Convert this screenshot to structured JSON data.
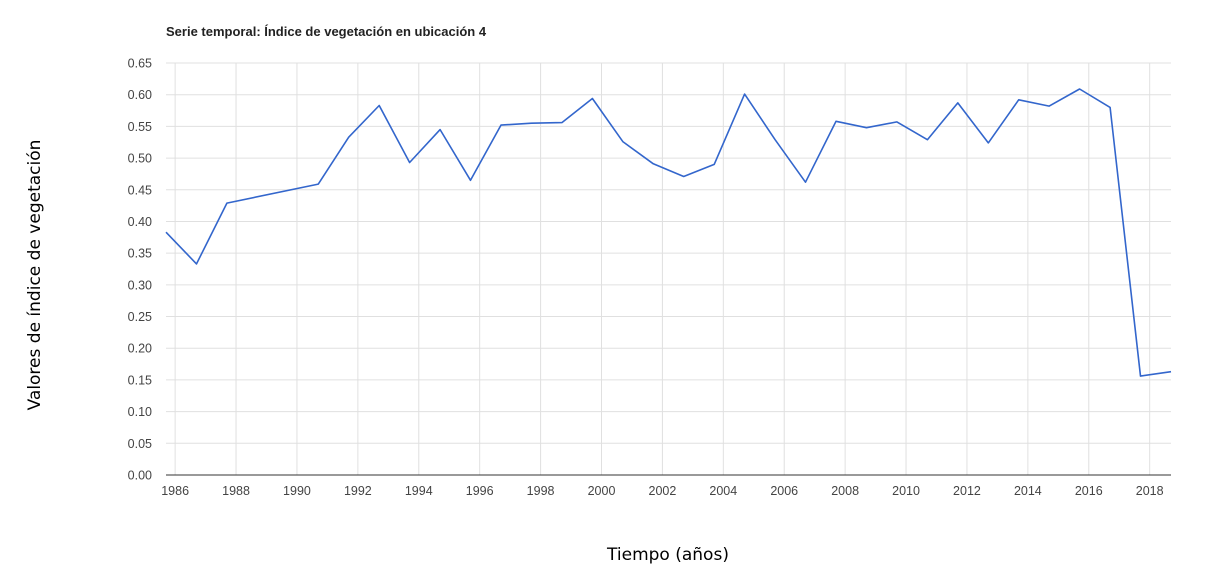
{
  "chart_data": {
    "type": "line",
    "title": "Serie temporal: Índice de vegetación en ubicación 4",
    "xlabel": "Tiempo (años)",
    "ylabel": "Valores de índice de vegetación",
    "xlim": [
      1985.7,
      2018.7
    ],
    "ylim": [
      0,
      0.65
    ],
    "x_ticks": [
      "1986",
      "1988",
      "1990",
      "1992",
      "1994",
      "1996",
      "1998",
      "2000",
      "2002",
      "2004",
      "2006",
      "2008",
      "2010",
      "2012",
      "2014",
      "2016",
      "2018"
    ],
    "y_ticks": [
      "0.00",
      "0.05",
      "0.10",
      "0.15",
      "0.20",
      "0.25",
      "0.30",
      "0.35",
      "0.40",
      "0.45",
      "0.50",
      "0.55",
      "0.60",
      "0.65"
    ],
    "grid": true,
    "series": [
      {
        "color": "#3366cc",
        "x": [
          1985.7,
          1986.7,
          1987.7,
          1990.7,
          1991.7,
          1992.7,
          1993.7,
          1994.7,
          1995.7,
          1996.7,
          1997.7,
          1998.7,
          1999.7,
          2000.7,
          2001.7,
          2002.7,
          2003.7,
          2004.7,
          2005.7,
          2006.7,
          2007.7,
          2008.7,
          2009.7,
          2010.7,
          2011.7,
          2012.7,
          2013.7,
          2014.7,
          2015.7,
          2016.7,
          2017.7,
          2018.7
        ],
        "y": [
          0.383,
          0.333,
          0.429,
          0.459,
          0.533,
          0.583,
          0.493,
          0.545,
          0.465,
          0.552,
          0.555,
          0.556,
          0.594,
          0.526,
          0.491,
          0.471,
          0.49,
          0.601,
          0.529,
          0.462,
          0.558,
          0.548,
          0.557,
          0.529,
          0.587,
          0.524,
          0.592,
          0.582,
          0.609,
          0.58,
          0.156,
          0.163
        ]
      }
    ]
  }
}
